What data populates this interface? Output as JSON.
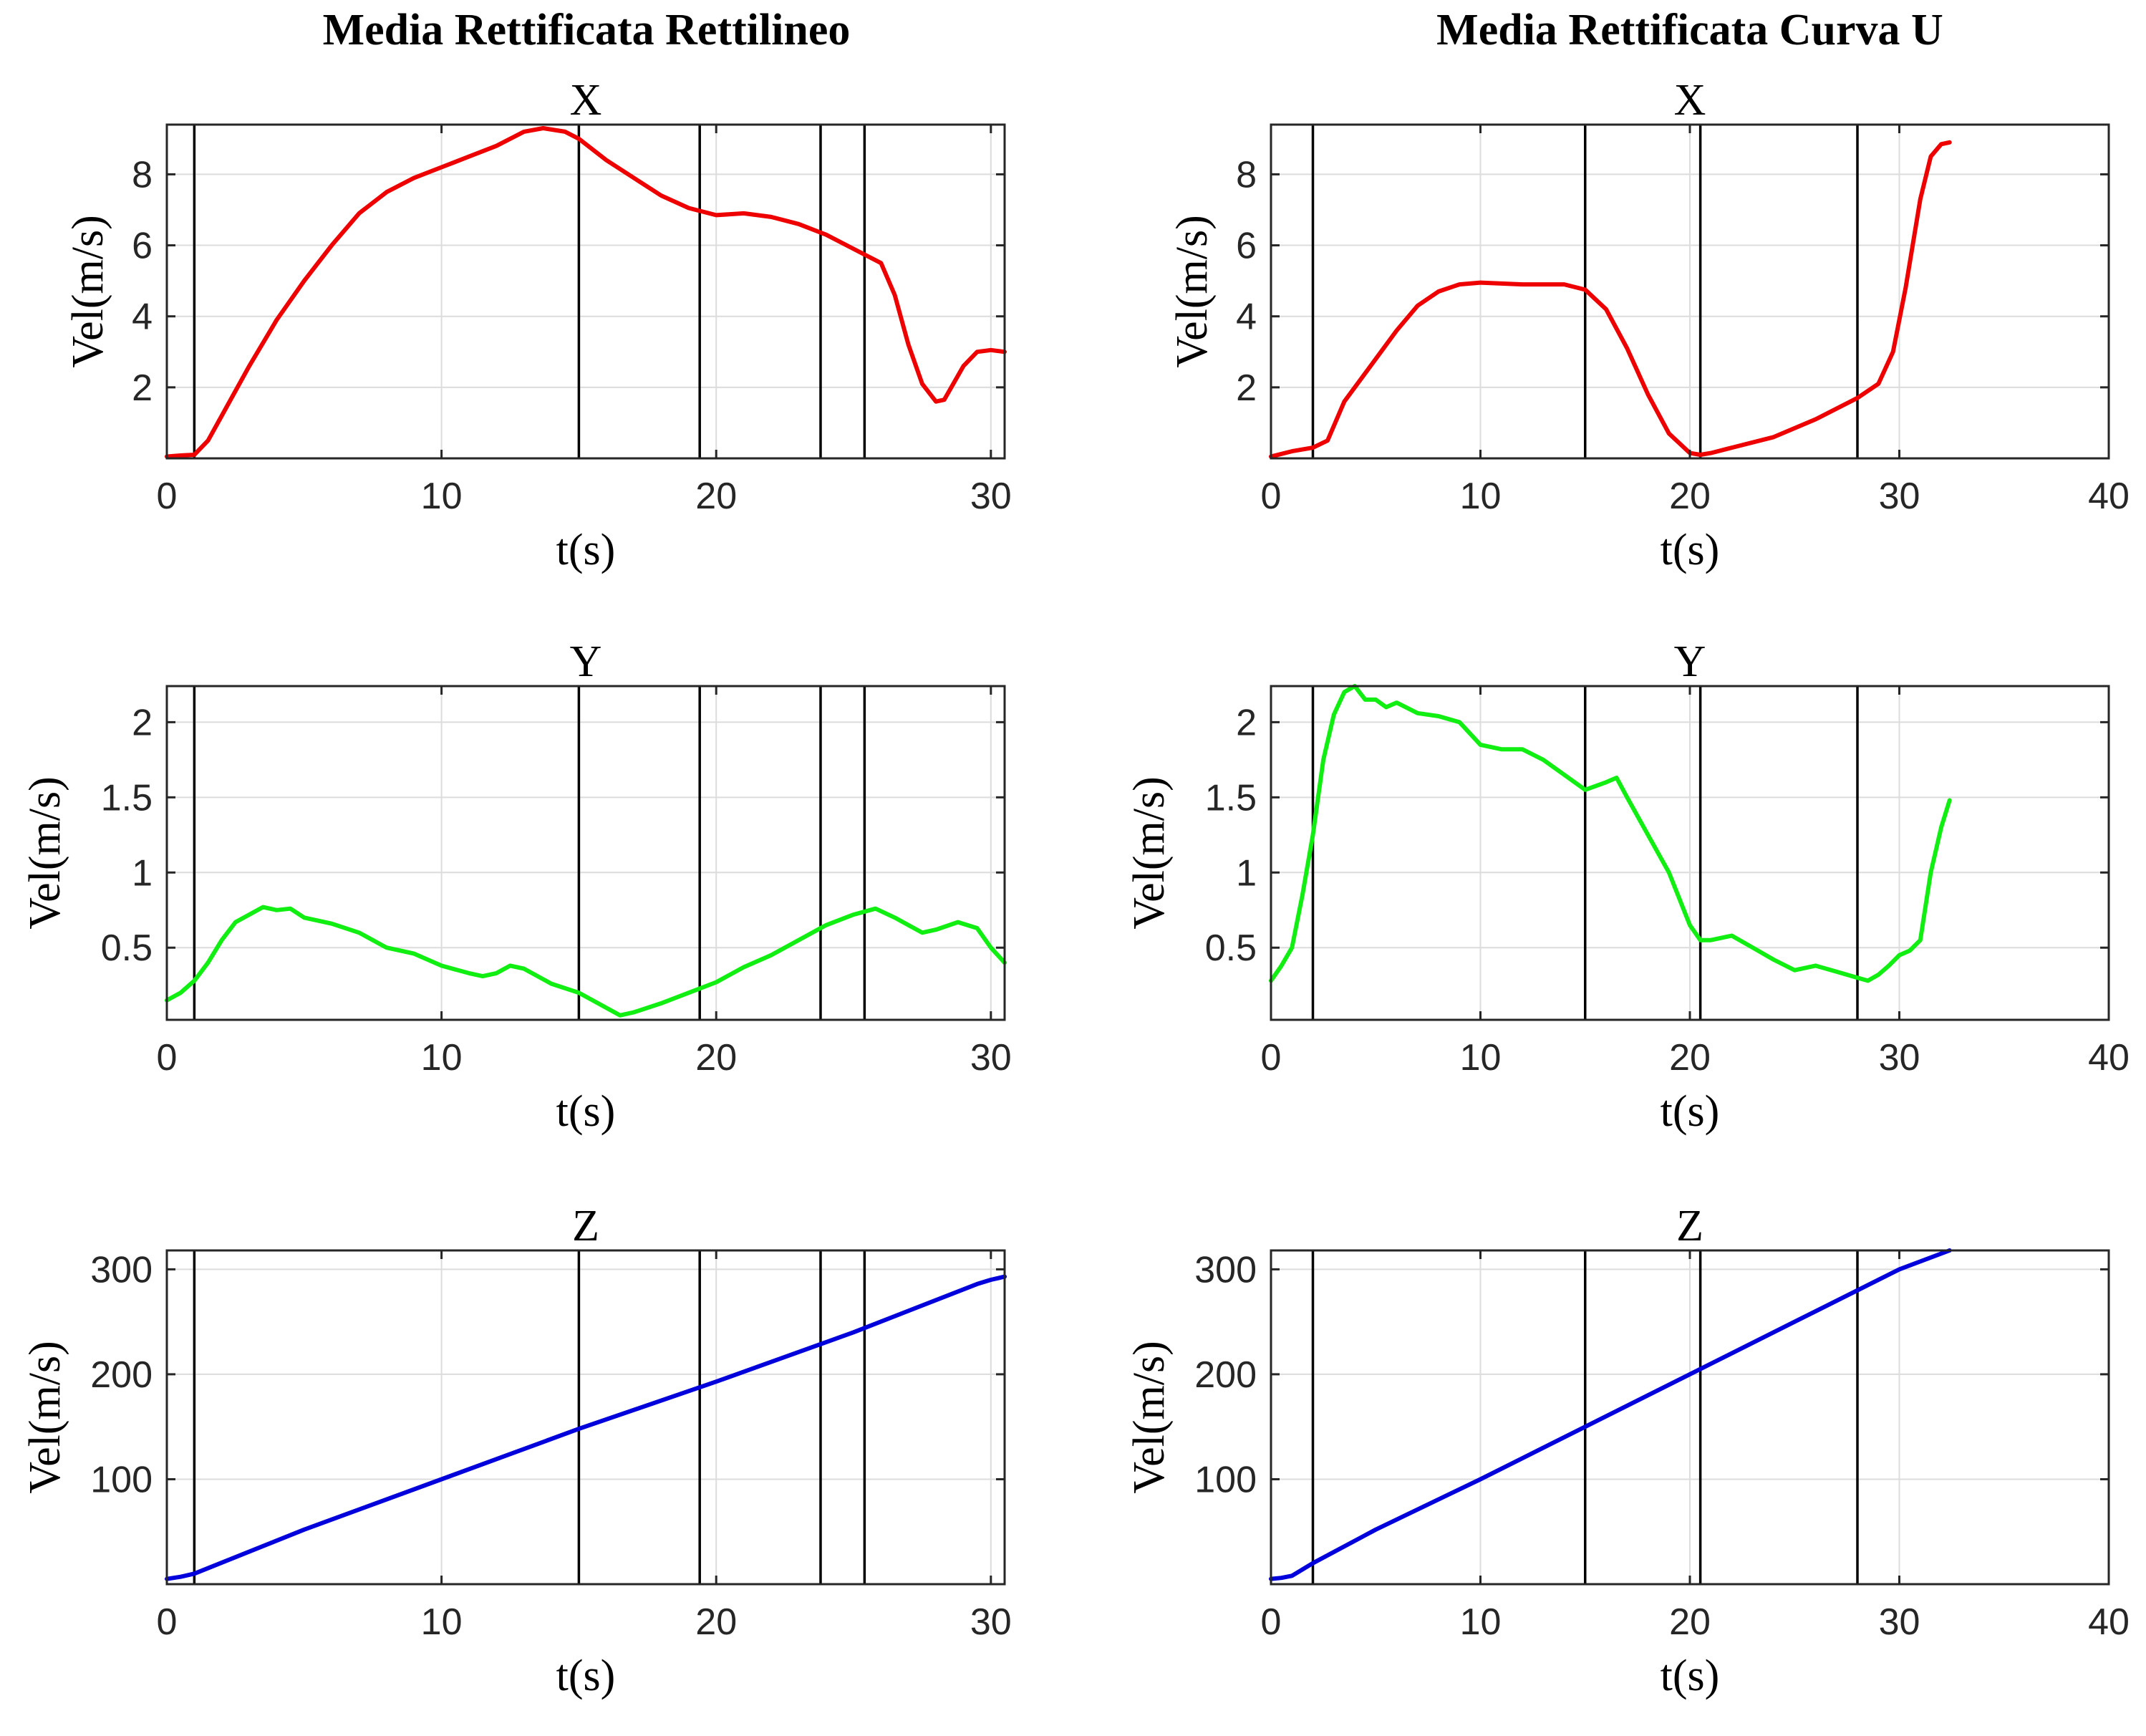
{
  "figure": {
    "column_titles": [
      "Media Rettificata Rettilineo",
      "Media Rettificata Curva U"
    ]
  },
  "colors": {
    "X": "#ee0000",
    "Y": "#11ee11",
    "Z": "#0000dd",
    "markers": "#000000"
  },
  "chart_data": [
    {
      "type": "line",
      "id": "rett-x",
      "title": "X",
      "xlabel": "t(s)",
      "ylabel": "Vel(m/s)",
      "xlim": [
        0,
        30.5
      ],
      "ylim": [
        0,
        9.4
      ],
      "xticks": [
        0,
        10,
        20,
        30
      ],
      "yticks": [
        2,
        4,
        6,
        8
      ],
      "grid": true,
      "color": "#ee0000",
      "event_lines": [
        1,
        15,
        19.4,
        23.8,
        25.4
      ],
      "x": [
        0,
        0.5,
        1,
        1.5,
        2,
        3,
        4,
        5,
        6,
        7,
        8,
        9,
        10,
        11,
        12,
        13,
        13.7,
        14.5,
        15,
        16,
        17,
        18,
        19,
        20,
        21,
        22,
        23,
        24,
        25,
        26,
        26.5,
        27,
        27.5,
        28,
        28.3,
        29,
        29.5,
        30,
        30.5
      ],
      "y": [
        0.05,
        0.08,
        0.1,
        0.5,
        1.2,
        2.6,
        3.9,
        5.0,
        6.0,
        6.9,
        7.5,
        7.9,
        8.2,
        8.5,
        8.8,
        9.2,
        9.3,
        9.2,
        9.0,
        8.4,
        7.9,
        7.4,
        7.05,
        6.85,
        6.9,
        6.8,
        6.6,
        6.3,
        5.9,
        5.5,
        4.6,
        3.2,
        2.1,
        1.6,
        1.65,
        2.6,
        3.0,
        3.05,
        3.0
      ]
    },
    {
      "type": "line",
      "id": "curva-x",
      "title": "X",
      "xlabel": "t(s)",
      "ylabel": "Vel(m/s)",
      "xlim": [
        0,
        40
      ],
      "ylim": [
        0,
        9.4
      ],
      "xticks": [
        0,
        10,
        20,
        30,
        40
      ],
      "yticks": [
        2,
        4,
        6,
        8
      ],
      "grid": true,
      "color": "#ee0000",
      "event_lines": [
        2,
        15,
        20.5,
        28
      ],
      "x": [
        0,
        1,
        2,
        2.7,
        3.5,
        5,
        6,
        7,
        8,
        9,
        10,
        12,
        14,
        15,
        16,
        17,
        18,
        19,
        20,
        20.5,
        21,
        22,
        24,
        26,
        28,
        29,
        29.7,
        30.3,
        31,
        31.5,
        32,
        32.4
      ],
      "y": [
        0.05,
        0.2,
        0.3,
        0.5,
        1.6,
        2.8,
        3.6,
        4.3,
        4.7,
        4.9,
        4.95,
        4.9,
        4.9,
        4.75,
        4.2,
        3.1,
        1.8,
        0.7,
        0.15,
        0.1,
        0.15,
        0.3,
        0.6,
        1.1,
        1.7,
        2.1,
        3.0,
        4.8,
        7.3,
        8.5,
        8.85,
        8.9
      ]
    },
    {
      "type": "line",
      "id": "rett-y",
      "title": "Y",
      "xlabel": "t(s)",
      "ylabel": "Vel(m/s)",
      "xlim": [
        0,
        30.5
      ],
      "ylim": [
        0.02,
        2.24
      ],
      "xticks": [
        0,
        10,
        20,
        30
      ],
      "yticks": [
        0.5,
        1,
        1.5,
        2
      ],
      "grid": true,
      "color": "#11ee11",
      "event_lines": [
        1,
        15,
        19.4,
        23.8,
        25.4
      ],
      "x": [
        0,
        0.5,
        1,
        1.5,
        2,
        2.5,
        3,
        3.5,
        4,
        4.5,
        5,
        6,
        7,
        8,
        9,
        10,
        11,
        11.5,
        12,
        12.5,
        13,
        14,
        15,
        16,
        16.5,
        17,
        18,
        19,
        20,
        21,
        22,
        23,
        24,
        25,
        25.8,
        26.5,
        27,
        27.5,
        28,
        28.8,
        29.5,
        30,
        30.5
      ],
      "y": [
        0.15,
        0.2,
        0.28,
        0.4,
        0.55,
        0.67,
        0.72,
        0.77,
        0.75,
        0.76,
        0.7,
        0.66,
        0.6,
        0.5,
        0.46,
        0.38,
        0.33,
        0.31,
        0.33,
        0.38,
        0.36,
        0.26,
        0.2,
        0.1,
        0.05,
        0.07,
        0.13,
        0.2,
        0.27,
        0.37,
        0.45,
        0.55,
        0.65,
        0.72,
        0.76,
        0.7,
        0.65,
        0.6,
        0.62,
        0.67,
        0.63,
        0.5,
        0.4
      ]
    },
    {
      "type": "line",
      "id": "curva-y",
      "title": "Y",
      "xlabel": "t(s)",
      "ylabel": "Vel(m/s)",
      "xlim": [
        0,
        40
      ],
      "ylim": [
        0.02,
        2.24
      ],
      "xticks": [
        0,
        10,
        20,
        30,
        40
      ],
      "yticks": [
        0.5,
        1,
        1.5,
        2
      ],
      "grid": true,
      "color": "#11ee11",
      "event_lines": [
        2,
        15,
        20.5,
        28
      ],
      "x": [
        0,
        0.5,
        1,
        1.5,
        2,
        2.5,
        3,
        3.5,
        4,
        4.5,
        5,
        5.5,
        6,
        7,
        8,
        9,
        10,
        11,
        12,
        13,
        14,
        15,
        16,
        16.5,
        17,
        18,
        19,
        20,
        20.5,
        21,
        22,
        23,
        24,
        25,
        26,
        27,
        28,
        28.5,
        29,
        29.5,
        30,
        30.5,
        31,
        31.5,
        32,
        32.4
      ],
      "y": [
        0.28,
        0.38,
        0.5,
        0.85,
        1.25,
        1.75,
        2.05,
        2.2,
        2.24,
        2.15,
        2.15,
        2.1,
        2.13,
        2.06,
        2.04,
        2.0,
        1.85,
        1.82,
        1.82,
        1.75,
        1.65,
        1.55,
        1.6,
        1.63,
        1.5,
        1.25,
        1.0,
        0.65,
        0.55,
        0.55,
        0.58,
        0.5,
        0.42,
        0.35,
        0.38,
        0.34,
        0.3,
        0.28,
        0.32,
        0.38,
        0.45,
        0.48,
        0.55,
        1.0,
        1.3,
        1.48
      ]
    },
    {
      "type": "line",
      "id": "rett-z",
      "title": "Z",
      "xlabel": "t(s)",
      "ylabel": "Vel(m/s)",
      "xlim": [
        0,
        30.5
      ],
      "ylim": [
        0,
        318
      ],
      "xticks": [
        0,
        10,
        20,
        30
      ],
      "yticks": [
        100,
        200,
        300
      ],
      "grid": true,
      "color": "#0000dd",
      "event_lines": [
        1,
        15,
        19.4,
        23.8,
        25.4
      ],
      "x": [
        0,
        0.5,
        1,
        5,
        10,
        15,
        20,
        25,
        29.5,
        30,
        30.5
      ],
      "y": [
        5,
        7,
        10,
        52,
        100,
        148,
        193,
        240,
        286,
        290,
        293
      ]
    },
    {
      "type": "line",
      "id": "curva-z",
      "title": "Z",
      "xlabel": "t(s)",
      "ylabel": "Vel(m/s)",
      "xlim": [
        0,
        40
      ],
      "ylim": [
        0,
        318
      ],
      "xticks": [
        0,
        10,
        20,
        30,
        40
      ],
      "yticks": [
        100,
        200,
        300
      ],
      "grid": true,
      "color": "#0000dd",
      "event_lines": [
        2,
        15,
        20.5,
        28
      ],
      "x": [
        0,
        0.5,
        1,
        2,
        5,
        10,
        15,
        20,
        25,
        30,
        32.4
      ],
      "y": [
        5,
        6,
        8,
        20,
        52,
        100,
        150,
        200,
        250,
        300,
        318
      ]
    }
  ]
}
